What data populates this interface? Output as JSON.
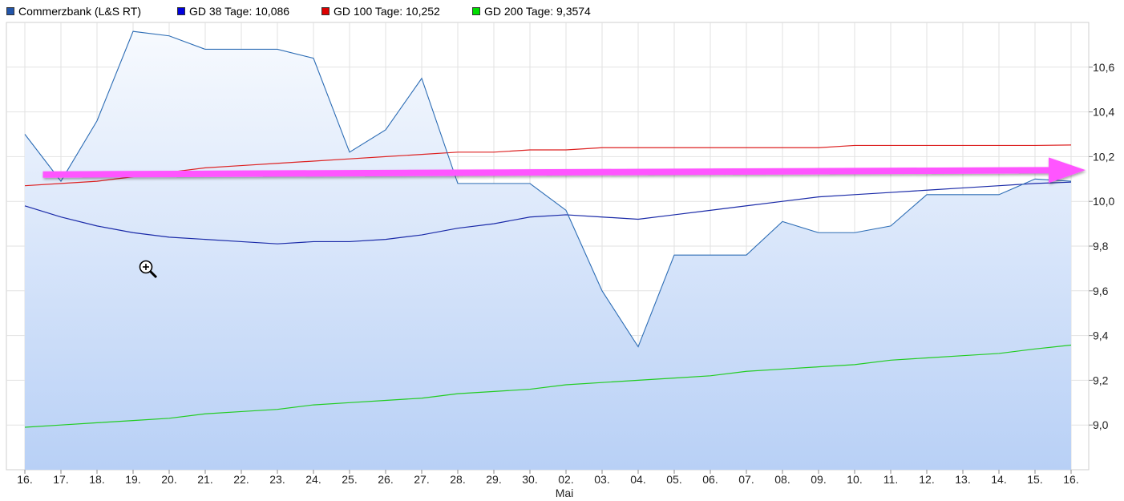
{
  "legend": [
    {
      "label": "Commerzbank (L&S RT)",
      "color": "#2255aa"
    },
    {
      "label": "GD 38 Tage: 10,086",
      "color": "#0000dd"
    },
    {
      "label": "GD 100 Tage: 10,252",
      "color": "#dd0000"
    },
    {
      "label": "GD 200 Tage: 9,3574",
      "color": "#00dd00"
    }
  ],
  "chart_data": {
    "type": "line",
    "categories": [
      "16.",
      "17.",
      "18.",
      "19.",
      "20.",
      "21.",
      "22.",
      "23.",
      "24.",
      "25.",
      "26.",
      "27.",
      "28.",
      "29.",
      "30.",
      "02.",
      "03.",
      "04.",
      "05.",
      "06.",
      "07.",
      "08.",
      "09.",
      "10.",
      "11.",
      "12.",
      "13.",
      "14.",
      "15.",
      "16."
    ],
    "x_sublabel": {
      "category_index": 15,
      "text": "Mai"
    },
    "ylim": [
      8.8,
      10.8
    ],
    "yticks": [
      9.0,
      9.2,
      9.4,
      9.6,
      9.8,
      10.0,
      10.2,
      10.4,
      10.6
    ],
    "ytick_labels": [
      "9,0",
      "9,2",
      "9,4",
      "9,6",
      "9,8",
      "10,0",
      "10,2",
      "10,4",
      "10,6"
    ],
    "grid": true,
    "legend_position": "top-left",
    "series": [
      {
        "name": "Commerzbank (L&S RT)",
        "color": "#2d6db5",
        "fill": true,
        "values": [
          10.3,
          10.09,
          10.36,
          10.76,
          10.74,
          10.68,
          10.68,
          10.68,
          10.64,
          10.22,
          10.32,
          10.55,
          10.08,
          10.08,
          10.08,
          9.96,
          9.6,
          9.35,
          9.76,
          9.76,
          9.76,
          9.91,
          9.86,
          9.86,
          9.89,
          10.03,
          10.03,
          10.03,
          10.1,
          10.09
        ]
      },
      {
        "name": "GD 38 Tage: 10,086",
        "color": "#1a2aa8",
        "values": [
          9.98,
          9.93,
          9.89,
          9.86,
          9.84,
          9.83,
          9.82,
          9.81,
          9.82,
          9.82,
          9.83,
          9.85,
          9.88,
          9.9,
          9.93,
          9.94,
          9.93,
          9.92,
          9.94,
          9.96,
          9.98,
          10.0,
          10.02,
          10.03,
          10.04,
          10.05,
          10.06,
          10.07,
          10.08,
          10.086
        ]
      },
      {
        "name": "GD 100 Tage: 10,252",
        "color": "#dd2222",
        "values": [
          10.07,
          10.08,
          10.09,
          10.11,
          10.13,
          10.15,
          10.16,
          10.17,
          10.18,
          10.19,
          10.2,
          10.21,
          10.22,
          10.22,
          10.23,
          10.23,
          10.24,
          10.24,
          10.24,
          10.24,
          10.24,
          10.24,
          10.24,
          10.25,
          10.25,
          10.25,
          10.25,
          10.25,
          10.25,
          10.252
        ]
      },
      {
        "name": "GD 200 Tage: 9,3574",
        "color": "#22cc22",
        "values": [
          8.99,
          9.0,
          9.01,
          9.02,
          9.03,
          9.05,
          9.06,
          9.07,
          9.09,
          9.1,
          9.11,
          9.12,
          9.14,
          9.15,
          9.16,
          9.18,
          9.19,
          9.2,
          9.21,
          9.22,
          9.24,
          9.25,
          9.26,
          9.27,
          9.29,
          9.3,
          9.31,
          9.32,
          9.34,
          9.3574
        ]
      }
    ],
    "annotation_arrow": {
      "color": "#ff55ff",
      "x_start_index": 0.5,
      "x_end_index": 29.4,
      "y_start": 10.12,
      "y_end": 10.14
    }
  },
  "cursor_icon": "zoom-in-magnifier-icon"
}
